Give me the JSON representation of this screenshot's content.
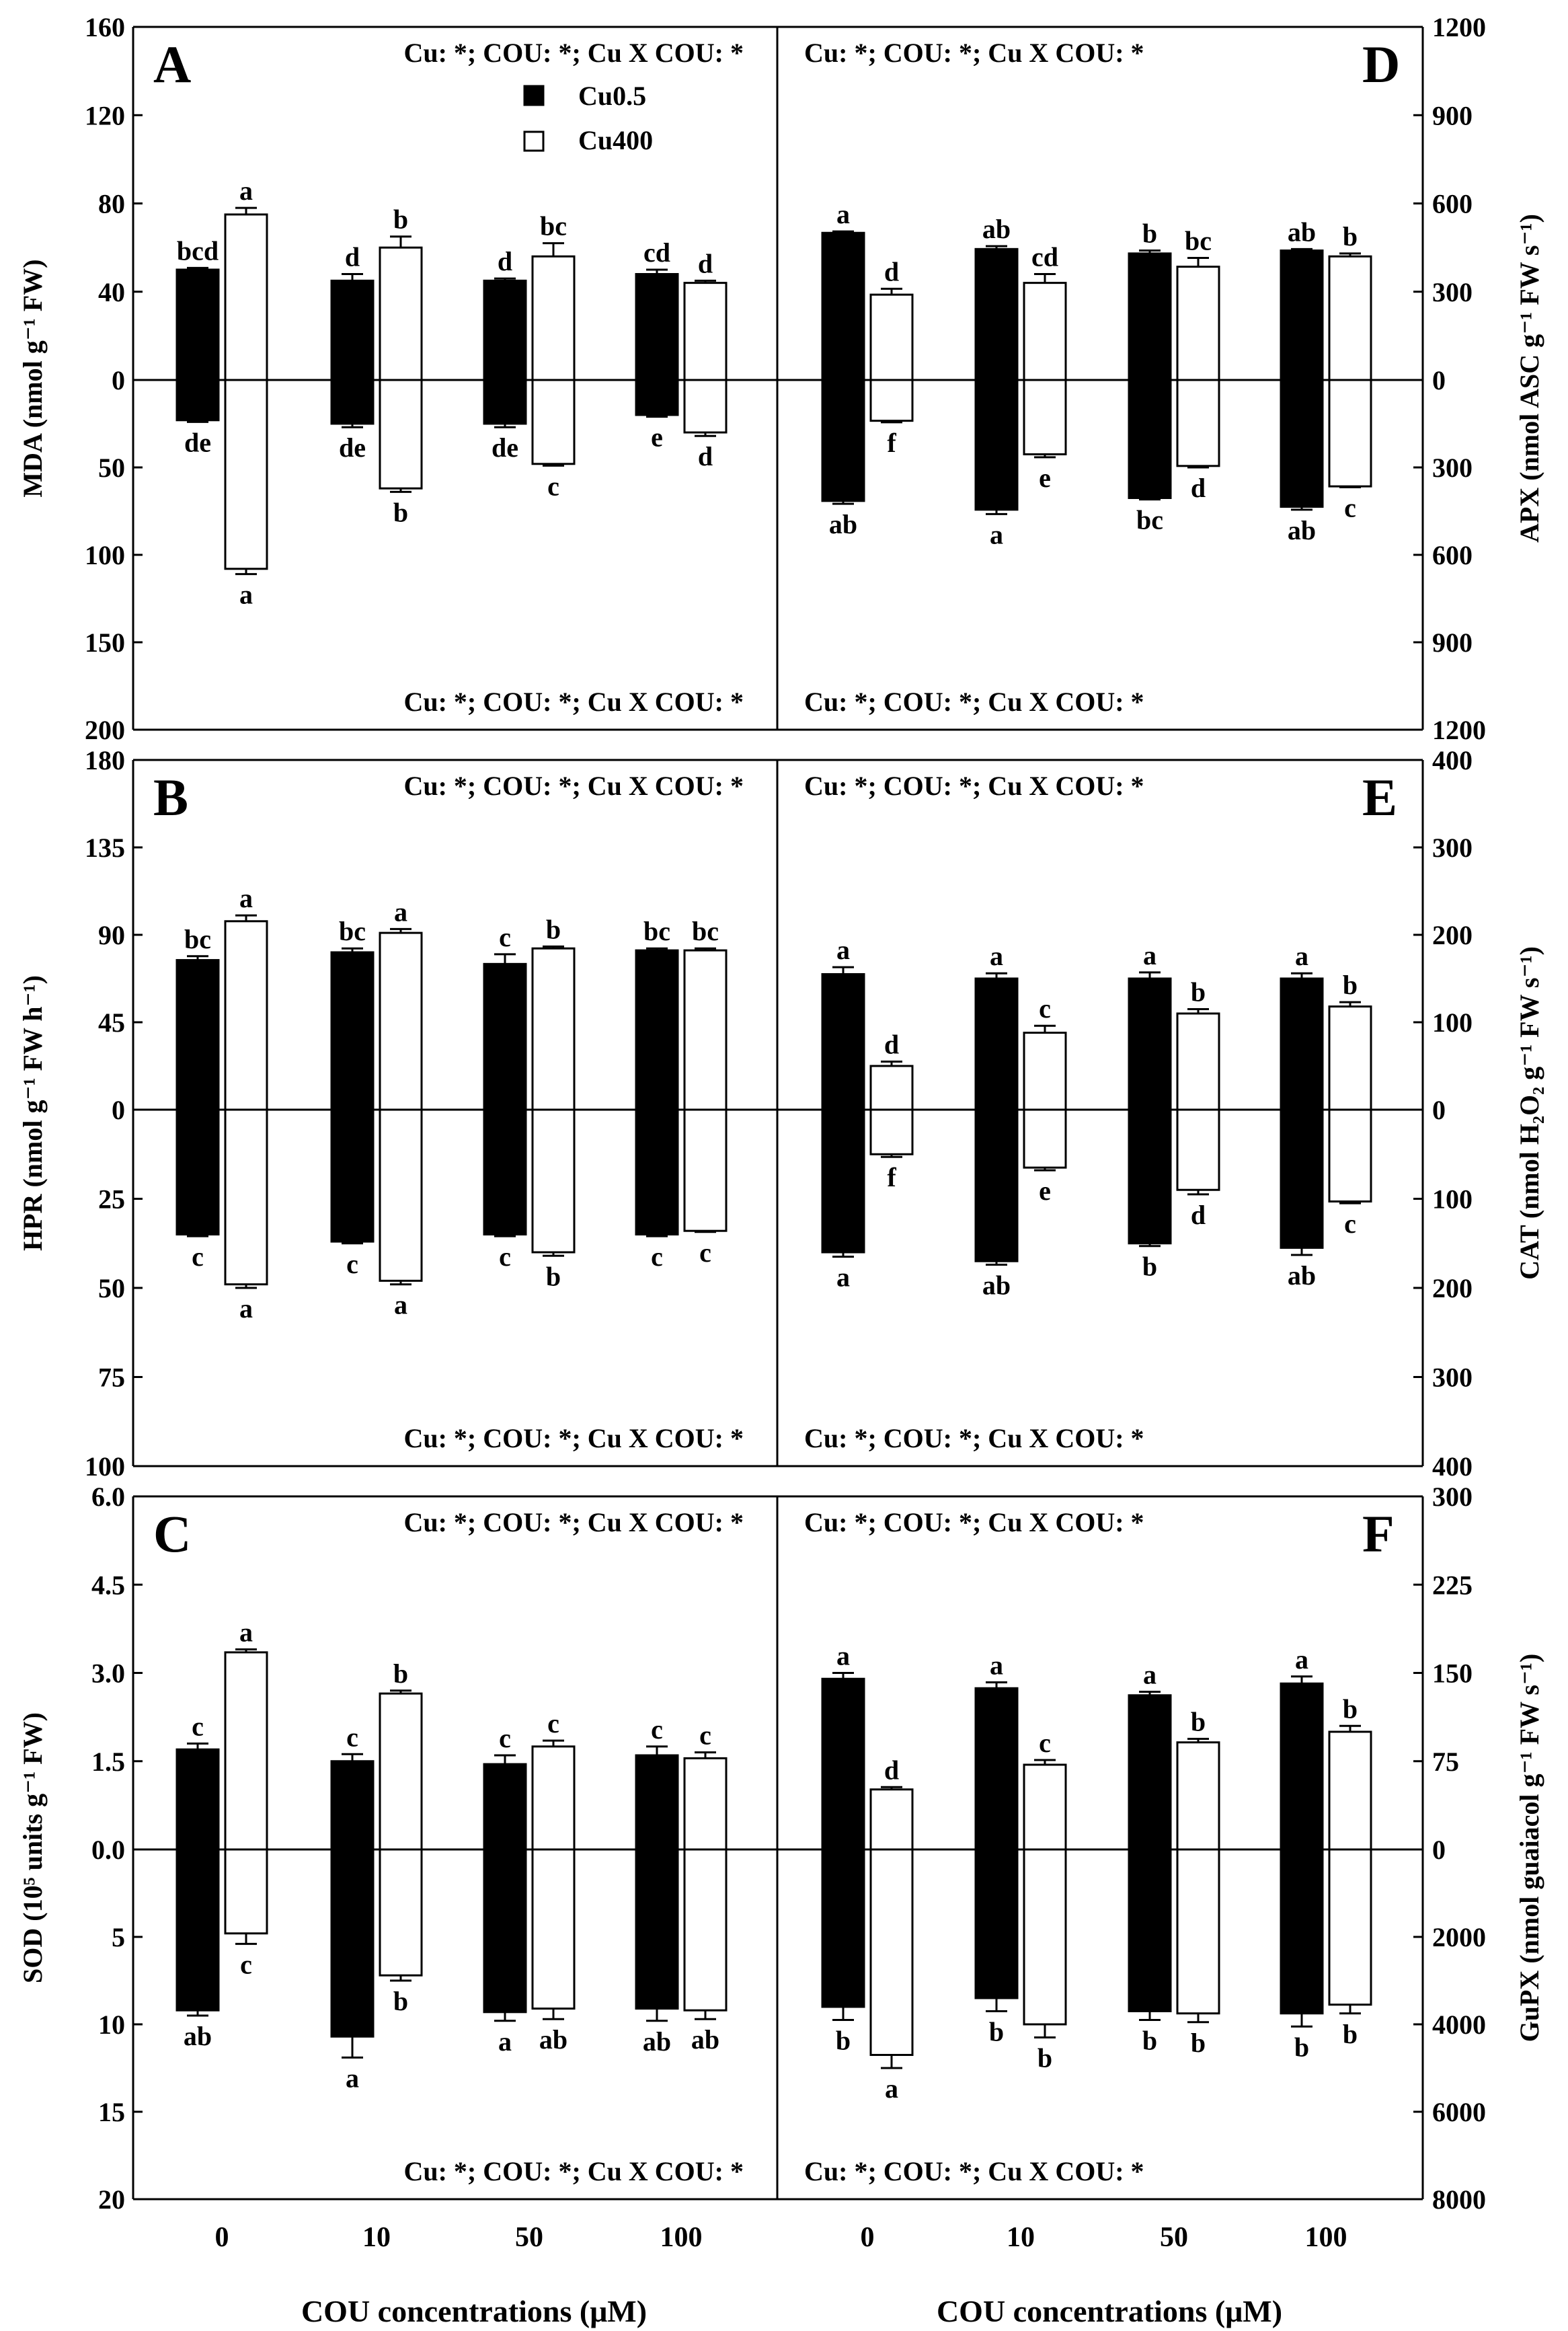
{
  "figure": {
    "x_axis_label": "COU concentrations (μM)",
    "x_ticks": [
      "0",
      "10",
      "50",
      "100"
    ],
    "legend": {
      "black": "Cu0.5",
      "white": "Cu400"
    },
    "colors": {
      "cu05": "#000000",
      "cu400": "#ffffff",
      "stroke": "#000000"
    }
  },
  "chart_data": [
    {
      "type": "bar",
      "id": "A",
      "panel_letter": "A",
      "column": "left",
      "row": 0,
      "ylabel": "MDA (nmol g⁻¹ FW)",
      "top_ticks": [
        "0",
        "40",
        "80",
        "120",
        "160"
      ],
      "top_max": 160,
      "bottom_ticks": [
        "50",
        "100",
        "150",
        "200"
      ],
      "bottom_max": 200,
      "categories": [
        "0",
        "10",
        "50",
        "100"
      ],
      "series": [
        {
          "name": "Cu0.5",
          "top": [
            50,
            45,
            45,
            48
          ],
          "top_err": [
            0.8,
            3,
            1,
            2
          ],
          "bottom": [
            23,
            25,
            25,
            20
          ],
          "bottom_err": [
            1,
            2,
            2,
            1
          ],
          "top_labels": [
            "bcd",
            "d",
            "d",
            "cd"
          ],
          "bottom_labels": [
            "de",
            "de",
            "de",
            "e"
          ]
        },
        {
          "name": "Cu400",
          "top": [
            75,
            60,
            56,
            44
          ],
          "top_err": [
            3,
            5,
            6,
            1
          ],
          "bottom": [
            108,
            62,
            48,
            30
          ],
          "bottom_err": [
            3,
            2,
            1,
            2
          ],
          "top_labels": [
            "a",
            "b",
            "bc",
            "d"
          ],
          "bottom_labels": [
            "a",
            "b",
            "c",
            "d"
          ]
        }
      ],
      "stats_top": "Cu: *; COU: *; Cu X COU: *",
      "stats_bottom": "Cu: *; COU: *; Cu X COU: *"
    },
    {
      "type": "bar",
      "id": "B",
      "panel_letter": "B",
      "column": "left",
      "row": 1,
      "ylabel": "HPR (nmol g⁻¹ FW h⁻¹)",
      "top_ticks": [
        "0",
        "45",
        "90",
        "135",
        "180"
      ],
      "top_max": 180,
      "bottom_ticks": [
        "25",
        "50",
        "75",
        "100"
      ],
      "bottom_max": 100,
      "categories": [
        "0",
        "10",
        "50",
        "100"
      ],
      "series": [
        {
          "name": "Cu0.5",
          "top": [
            77,
            81,
            75,
            82
          ],
          "top_err": [
            2,
            2,
            5,
            1
          ],
          "bottom": [
            35,
            37,
            35,
            35
          ],
          "bottom_err": [
            0.5,
            0.5,
            0.5,
            0.5
          ],
          "top_labels": [
            "bc",
            "bc",
            "c",
            "bc"
          ],
          "bottom_labels": [
            "c",
            "c",
            "c",
            "c"
          ]
        },
        {
          "name": "Cu400",
          "top": [
            97,
            91,
            83,
            82
          ],
          "top_err": [
            3,
            2,
            1,
            1
          ],
          "bottom": [
            49,
            48,
            40,
            34
          ],
          "bottom_err": [
            1,
            1,
            1,
            0.3
          ],
          "top_labels": [
            "a",
            "a",
            "b",
            "bc"
          ],
          "bottom_labels": [
            "a",
            "a",
            "b",
            "c"
          ]
        }
      ],
      "stats_top": "Cu: *; COU: *; Cu X COU: *",
      "stats_bottom": "Cu: *; COU: *; Cu X COU: *"
    },
    {
      "type": "bar",
      "id": "C",
      "panel_letter": "C",
      "column": "left",
      "row": 2,
      "ylabel": "SOD (10⁵ units g⁻¹ FW)",
      "top_ticks": [
        "0.0",
        "1.5",
        "3.0",
        "4.5",
        "6.0"
      ],
      "top_max": 6,
      "bottom_ticks": [
        "5",
        "10",
        "15",
        "20"
      ],
      "bottom_max": 20,
      "categories": [
        "0",
        "10",
        "50",
        "100"
      ],
      "series": [
        {
          "name": "Cu0.5",
          "top": [
            1.7,
            1.5,
            1.45,
            1.6
          ],
          "top_err": [
            0.1,
            0.12,
            0.15,
            0.15
          ],
          "bottom": [
            9.2,
            10.7,
            9.3,
            9.1
          ],
          "bottom_err": [
            0.3,
            1.2,
            0.5,
            0.7
          ],
          "top_labels": [
            "c",
            "c",
            "c",
            "c"
          ],
          "bottom_labels": [
            "ab",
            "a",
            "a",
            "ab"
          ]
        },
        {
          "name": "Cu400",
          "top": [
            3.35,
            2.65,
            1.75,
            1.55
          ],
          "top_err": [
            0.05,
            0.05,
            0.1,
            0.1
          ],
          "bottom": [
            4.8,
            7.2,
            9.1,
            9.2
          ],
          "bottom_err": [
            0.6,
            0.3,
            0.6,
            0.5
          ],
          "top_labels": [
            "a",
            "b",
            "c",
            "c"
          ],
          "bottom_labels": [
            "c",
            "b",
            "ab",
            "ab"
          ]
        }
      ],
      "stats_top": "Cu: *; COU: *; Cu X COU: *",
      "stats_bottom": "Cu: *; COU: *; Cu X COU: *"
    },
    {
      "type": "bar",
      "id": "D",
      "panel_letter": "D",
      "column": "right",
      "row": 0,
      "ylabel": "APX (nmol ASC g⁻¹ FW s⁻¹)",
      "top_ticks": [
        "0",
        "300",
        "600",
        "900",
        "1200"
      ],
      "top_max": 1200,
      "bottom_ticks": [
        "300",
        "600",
        "900",
        "1200"
      ],
      "bottom_max": 1200,
      "categories": [
        "0",
        "10",
        "50",
        "100"
      ],
      "series": [
        {
          "name": "Cu0.5",
          "top": [
            500,
            445,
            430,
            440
          ],
          "top_err": [
            5,
            10,
            10,
            5
          ],
          "bottom": [
            415,
            445,
            405,
            435
          ],
          "bottom_err": [
            10,
            15,
            5,
            10
          ],
          "top_labels": [
            "a",
            "ab",
            "b",
            "ab"
          ],
          "bottom_labels": [
            "ab",
            "a",
            "bc",
            "ab"
          ]
        },
        {
          "name": "Cu400",
          "top": [
            290,
            330,
            385,
            420
          ],
          "top_err": [
            20,
            30,
            30,
            10
          ],
          "bottom": [
            140,
            255,
            295,
            365
          ],
          "bottom_err": [
            5,
            10,
            5,
            3
          ],
          "top_labels": [
            "d",
            "cd",
            "bc",
            "b"
          ],
          "bottom_labels": [
            "f",
            "e",
            "d",
            "c"
          ]
        }
      ],
      "stats_top": "Cu: *; COU: *; Cu X COU: *",
      "stats_bottom": "Cu: *; COU: *; Cu X COU: *"
    },
    {
      "type": "bar",
      "id": "E",
      "panel_letter": "E",
      "column": "right",
      "row": 1,
      "ylabel": "CAT (nmol H₂O₂ g⁻¹ FW s⁻¹)",
      "top_ticks": [
        "0",
        "100",
        "200",
        "300",
        "400"
      ],
      "top_max": 400,
      "bottom_ticks": [
        "100",
        "200",
        "300",
        "400"
      ],
      "bottom_max": 400,
      "categories": [
        "0",
        "10",
        "50",
        "100"
      ],
      "series": [
        {
          "name": "Cu0.5",
          "top": [
            155,
            150,
            150,
            150
          ],
          "top_err": [
            8,
            6,
            7,
            6
          ],
          "bottom": [
            160,
            170,
            150,
            155
          ],
          "bottom_err": [
            5,
            4,
            3,
            8
          ],
          "top_labels": [
            "a",
            "a",
            "a",
            "a"
          ],
          "bottom_labels": [
            "a",
            "ab",
            "b",
            "ab"
          ]
        },
        {
          "name": "Cu400",
          "top": [
            50,
            88,
            110,
            118
          ],
          "top_err": [
            5,
            8,
            5,
            5
          ],
          "bottom": [
            50,
            65,
            90,
            103
          ],
          "bottom_err": [
            3,
            3,
            5,
            2
          ],
          "top_labels": [
            "d",
            "c",
            "b",
            "b"
          ],
          "bottom_labels": [
            "f",
            "e",
            "d",
            "c"
          ]
        }
      ],
      "stats_top": "Cu: *; COU: *; Cu X COU: *",
      "stats_bottom": "Cu: *; COU: *; Cu X COU: *"
    },
    {
      "type": "bar",
      "id": "F",
      "panel_letter": "F",
      "column": "right",
      "row": 2,
      "ylabel": "GuPX (nmol guaiacol g⁻¹ FW s⁻¹)",
      "top_ticks": [
        "0",
        "75",
        "150",
        "225",
        "300"
      ],
      "top_max": 300,
      "bottom_ticks": [
        "2000",
        "4000",
        "6000",
        "8000"
      ],
      "bottom_max": 8000,
      "categories": [
        "0",
        "10",
        "50",
        "100"
      ],
      "series": [
        {
          "name": "Cu0.5",
          "top": [
            145,
            137,
            131,
            141
          ],
          "top_err": [
            5,
            5,
            3,
            6
          ],
          "bottom": [
            3600,
            3400,
            3700,
            3750
          ],
          "bottom_err": [
            300,
            300,
            200,
            300
          ],
          "top_labels": [
            "a",
            "a",
            "a",
            "a"
          ],
          "bottom_labels": [
            "b",
            "b",
            "b",
            "b"
          ]
        },
        {
          "name": "Cu400",
          "top": [
            51,
            72,
            91,
            100
          ],
          "top_err": [
            2,
            4,
            3,
            5
          ],
          "bottom": [
            4700,
            4000,
            3750,
            3550
          ],
          "bottom_err": [
            300,
            300,
            200,
            200
          ],
          "top_labels": [
            "d",
            "c",
            "b",
            "b"
          ],
          "bottom_labels": [
            "a",
            "b",
            "b",
            "b"
          ]
        }
      ],
      "stats_top": "Cu: *; COU: *; Cu X COU: *",
      "stats_bottom": "Cu: *; COU: *; Cu X COU: *"
    }
  ]
}
